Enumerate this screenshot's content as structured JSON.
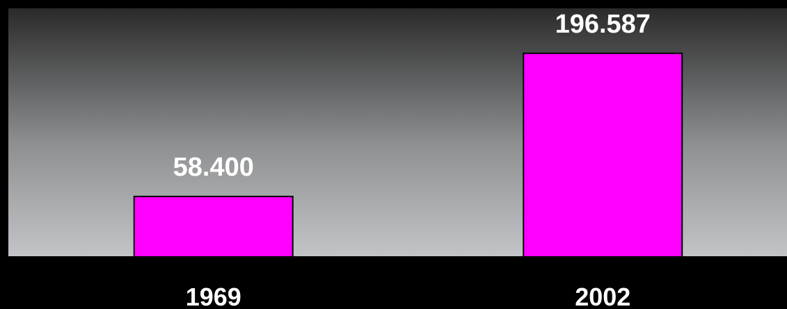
{
  "chart_data": {
    "type": "bar",
    "categories": [
      "1969",
      "2002"
    ],
    "values": [
      58400,
      196587
    ],
    "value_labels": [
      "58.400",
      "196.587"
    ],
    "title": "",
    "xlabel": "",
    "ylabel": "",
    "ylim": [
      0,
      240000
    ],
    "grid": false,
    "legend": "none",
    "colors": {
      "bar": "#ff00ff",
      "bar_outline": "#000000",
      "plot_gradient_top": "#2a2a2a",
      "plot_gradient_bottom": "#c2c4c7",
      "background": "#000000",
      "text": "#ffffff"
    }
  }
}
